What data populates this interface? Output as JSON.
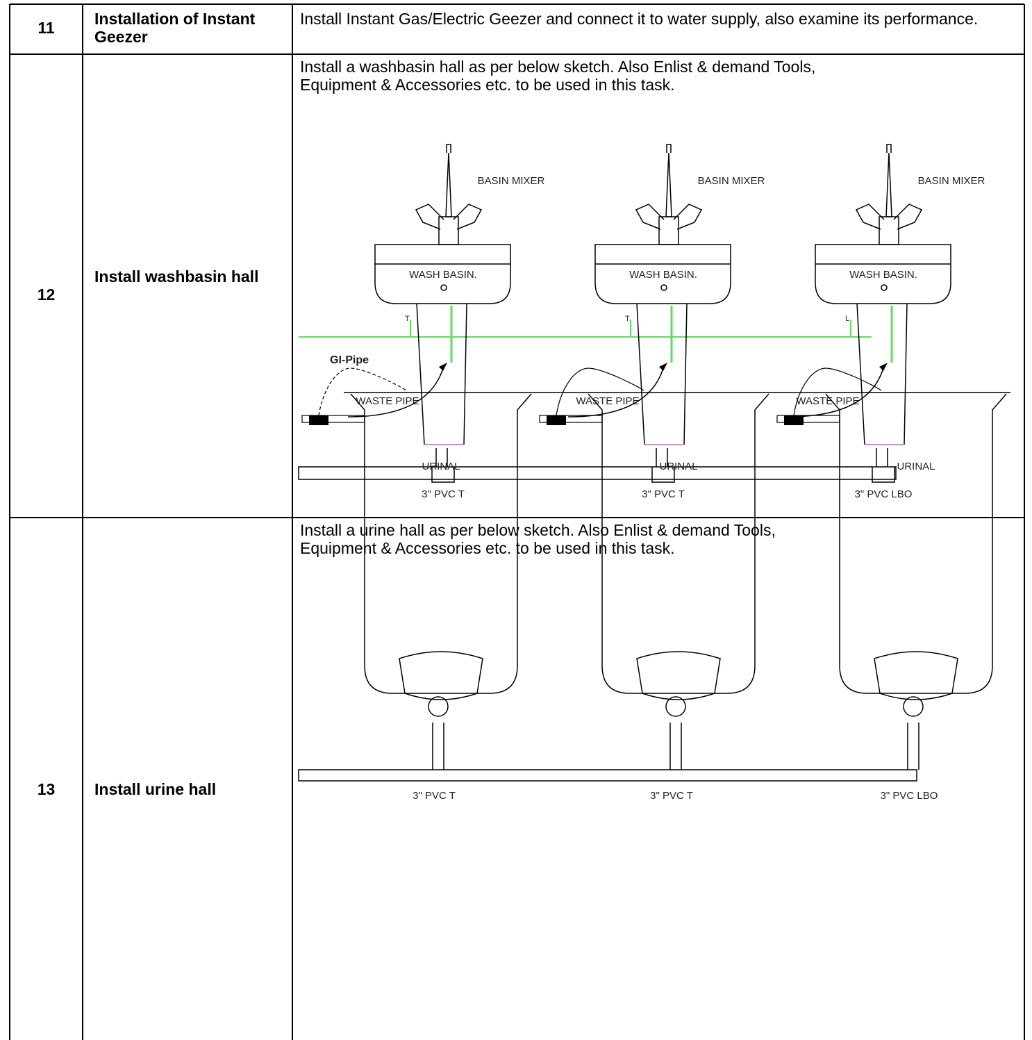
{
  "table": {
    "rows": [
      {
        "number": "11",
        "task": "Installation of Instant Geezer",
        "description": "Install Instant Gas/Electric Geezer and connect it to water supply, also examine its performance."
      },
      {
        "number": "12",
        "task": "Install washbasin hall",
        "description": "Install a washbasin hall as per below sketch. Also Enlist & demand Tools, Equipment & Accessories etc. to be used in this task.",
        "sketch": {
          "pipe": "GI-Pipe",
          "units": [
            {
              "mixer": "BASIN MIXER",
              "basin": "WASH BASIN.",
              "tee": "T",
              "waste": "WASTE PIPE",
              "fitting": "3\" PVC T"
            },
            {
              "mixer": "BASIN MIXER",
              "basin": "WASH BASIN.",
              "tee": "T",
              "waste": "WASTE PIPE",
              "fitting": "3\" PVC T"
            },
            {
              "mixer": "BASIN MIXER",
              "basin": "WASH BASIN.",
              "tee": "L",
              "waste": "WASTE PIPE",
              "fitting": "3\" PVC LBO"
            }
          ]
        }
      },
      {
        "number": "13",
        "task": "Install urine hall",
        "description": "Install a urine hall as per below sketch. Also Enlist & demand Tools, Equipment & Accessories etc. to be used in this task.",
        "sketch": {
          "units": [
            {
              "label": "URINAL",
              "fitting": "3\" PVC T"
            },
            {
              "label": "URINAL",
              "fitting": "3\" PVC T"
            },
            {
              "label": "URINAL",
              "fitting": "3\" PVC LBO"
            }
          ]
        }
      }
    ]
  }
}
